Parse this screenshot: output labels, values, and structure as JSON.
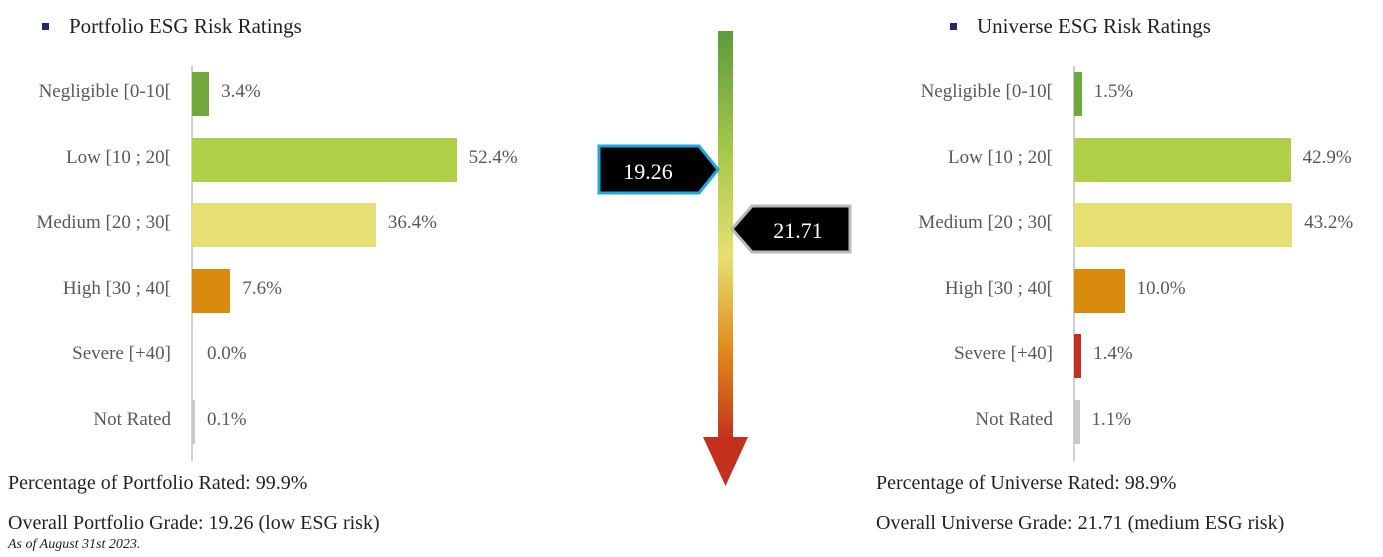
{
  "colors": {
    "negligible": "#70a83e",
    "low": "#b2cf4a",
    "medium": "#e6df74",
    "high": "#d88a0d",
    "severe": "#c4301e",
    "not_rated": "#c8c8c8",
    "bullet": "#1f2a6b",
    "portfolio_marker_border": "#1ea7e1",
    "universe_marker_border": "#b8b8b8"
  },
  "portfolio": {
    "title": "Portfolio ESG Risk Ratings",
    "rated_text": "Percentage of Portfolio Rated: 99.9%",
    "grade_text": "Overall Portfolio Grade: 19.26 (low ESG risk)"
  },
  "universe": {
    "title": "Universe ESG Risk Ratings",
    "rated_text": "Percentage of Universe Rated: 98.9%",
    "grade_text": "Overall Universe Grade: 21.71 (medium ESG risk)"
  },
  "note": "As of August 31st 2023.",
  "scale": {
    "portfolio_marker": "19.26",
    "universe_marker": "21.71"
  },
  "chart_data": [
    {
      "type": "bar",
      "orientation": "horizontal",
      "title": "Portfolio ESG Risk Ratings",
      "categories": [
        "Negligible [0-10[",
        "Low [10 ; 20[",
        "Medium [20 ; 30[",
        "High [30 ; 40[",
        "Severe [+40]",
        "Not Rated"
      ],
      "values": [
        3.4,
        52.4,
        36.4,
        7.6,
        0.0,
        0.1
      ],
      "value_labels": [
        "3.4%",
        "52.4%",
        "36.4%",
        "7.6%",
        "0.0%",
        "0.1%"
      ]
    },
    {
      "type": "bar",
      "orientation": "horizontal",
      "title": "Universe ESG Risk Ratings",
      "categories": [
        "Negligible [0-10[",
        "Low [10 ; 20[",
        "Medium [20 ; 30[",
        "High [30 ; 40[",
        "Severe [+40]",
        "Not Rated"
      ],
      "values": [
        1.5,
        42.9,
        43.2,
        10.0,
        1.4,
        1.1
      ],
      "value_labels": [
        "1.5%",
        "42.9%",
        "43.2%",
        "10.0%",
        "1.4%",
        "1.1%"
      ]
    }
  ]
}
